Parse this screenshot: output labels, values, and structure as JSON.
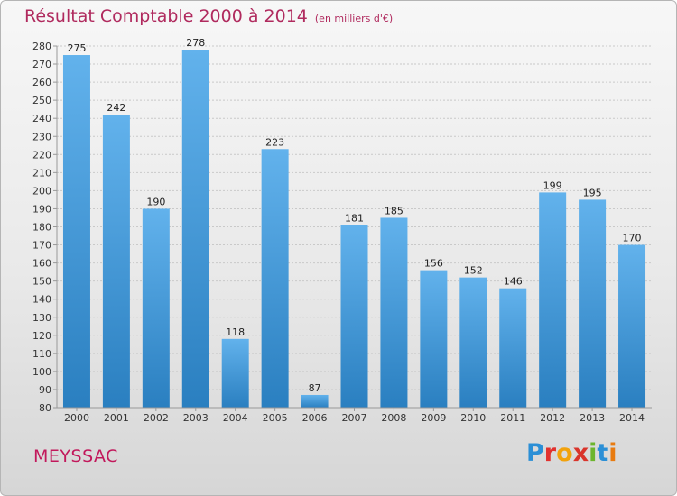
{
  "title": "Résultat Comptable 2000 à 2014",
  "subtitle": "(en milliers d'€)",
  "town": "MEYSSAC",
  "brand": {
    "text": "Proxiti",
    "colors": [
      "#2b8fd6",
      "#e2312d",
      "#f2a20c",
      "#d9342b",
      "#6cb52d",
      "#2b8fd6",
      "#e87b10"
    ]
  },
  "colors": {
    "bar_top": "#62b2ec",
    "bar_bottom": "#2a7fc0",
    "title": "#b02a5e"
  },
  "chart_data": {
    "type": "bar",
    "categories": [
      "2000",
      "2001",
      "2002",
      "2003",
      "2004",
      "2005",
      "2006",
      "2007",
      "2008",
      "2009",
      "2010",
      "2011",
      "2012",
      "2013",
      "2014"
    ],
    "values": [
      275,
      242,
      190,
      278,
      118,
      223,
      87,
      181,
      185,
      156,
      152,
      146,
      199,
      195,
      170
    ],
    "ylim": [
      80,
      280
    ],
    "yticks": [
      80,
      90,
      100,
      110,
      120,
      130,
      140,
      150,
      160,
      170,
      180,
      190,
      200,
      210,
      220,
      230,
      240,
      250,
      260,
      270,
      280
    ],
    "grid": true
  }
}
